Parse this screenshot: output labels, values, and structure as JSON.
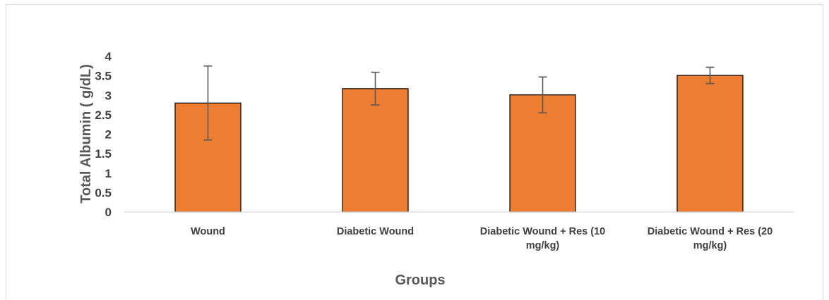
{
  "chart_data": {
    "type": "bar",
    "title": "",
    "xlabel": "Groups",
    "ylabel": "Total Albumin ( g/dL)",
    "categories": [
      [
        "Wound"
      ],
      [
        "Diabetic Wound"
      ],
      [
        "Diabetic Wound + Res (10",
        "mg/kg)"
      ],
      [
        "Diabetic Wound + Res (20",
        "mg/kg)"
      ]
    ],
    "values": [
      2.8,
      3.17,
      3.01,
      3.51
    ],
    "error_low": [
      1.85,
      2.75,
      2.55,
      3.3
    ],
    "error_high": [
      3.75,
      3.59,
      3.47,
      3.72
    ],
    "ylim": [
      0,
      4
    ],
    "yticks": [
      0,
      0.5,
      1,
      1.5,
      2,
      2.5,
      3,
      3.5,
      4
    ],
    "ytick_labels": [
      "0",
      "0.5",
      "1",
      "1.5",
      "2",
      "2.5",
      "3",
      "3.5",
      "4"
    ],
    "grid": false,
    "legend": "none",
    "colors": {
      "bar_fill": "#ed7d31",
      "bar_stroke": "#000000",
      "error_bar": "#595959",
      "axis_line": "#d9d9d9"
    }
  }
}
